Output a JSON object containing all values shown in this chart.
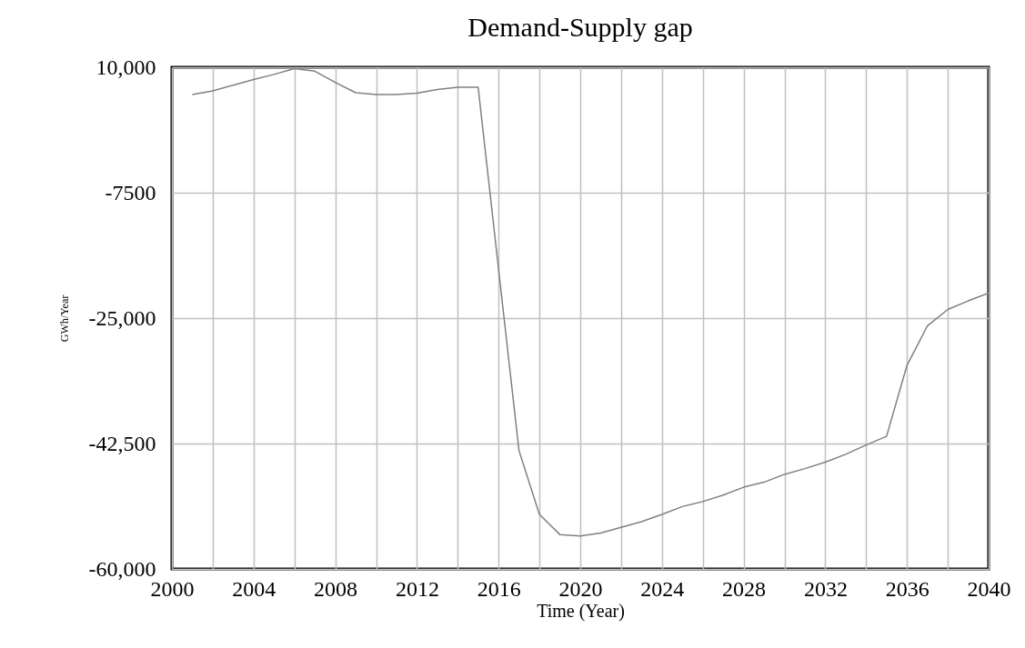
{
  "chart_data": {
    "type": "line",
    "title": "Demand-Supply gap",
    "xlabel": "Time (Year)",
    "ylabel": "GWh/Year",
    "x": [
      2001,
      2002,
      2003,
      2004,
      2005,
      2006,
      2007,
      2008,
      2009,
      2010,
      2011,
      2012,
      2013,
      2014,
      2015,
      2016,
      2017,
      2018,
      2019,
      2020,
      2021,
      2022,
      2023,
      2024,
      2025,
      2026,
      2027,
      2028,
      2029,
      2030,
      2031,
      2032,
      2033,
      2034,
      2035,
      2036,
      2037,
      2038,
      2039,
      2040
    ],
    "series": [
      {
        "color": "#808080",
        "values": [
          6200,
          6700,
          7500,
          8300,
          9000,
          9800,
          9450,
          7900,
          6450,
          6200,
          6200,
          6400,
          6900,
          7200,
          7200,
          -18200,
          -43500,
          -52400,
          -55200,
          -55400,
          -55000,
          -54200,
          -53400,
          -52400,
          -51300,
          -50600,
          -49700,
          -48600,
          -47900,
          -46800,
          -46000,
          -45100,
          -44000,
          -42700,
          -41500,
          -31600,
          -26100,
          -23800,
          -22600,
          -21500
        ]
      }
    ],
    "xlim": [
      2000,
      2040
    ],
    "xticks": [
      2000,
      {
        "value": 2002,
        "label": null
      },
      2004,
      {
        "value": 2006,
        "label": null
      },
      2008,
      {
        "value": 2010,
        "label": null
      },
      2012,
      {
        "value": 2014,
        "label": null
      },
      2016,
      {
        "value": 2018,
        "label": null
      },
      2020,
      {
        "value": 2022,
        "label": null
      },
      2024,
      {
        "value": 2026,
        "label": null
      },
      2028,
      {
        "value": 2030,
        "label": null
      },
      2032,
      {
        "value": 2034,
        "label": null
      },
      2036,
      {
        "value": 2038,
        "label": null
      },
      2040
    ],
    "ylim": [
      -60000,
      10000
    ],
    "yticks": [
      {
        "value": 10000,
        "label": "10,000"
      },
      -7500,
      {
        "value": -25000,
        "label": "-25,000"
      },
      {
        "value": -42500,
        "label": "-42,500"
      },
      {
        "value": -60000,
        "label": "-60,000"
      }
    ],
    "grid": true
  }
}
